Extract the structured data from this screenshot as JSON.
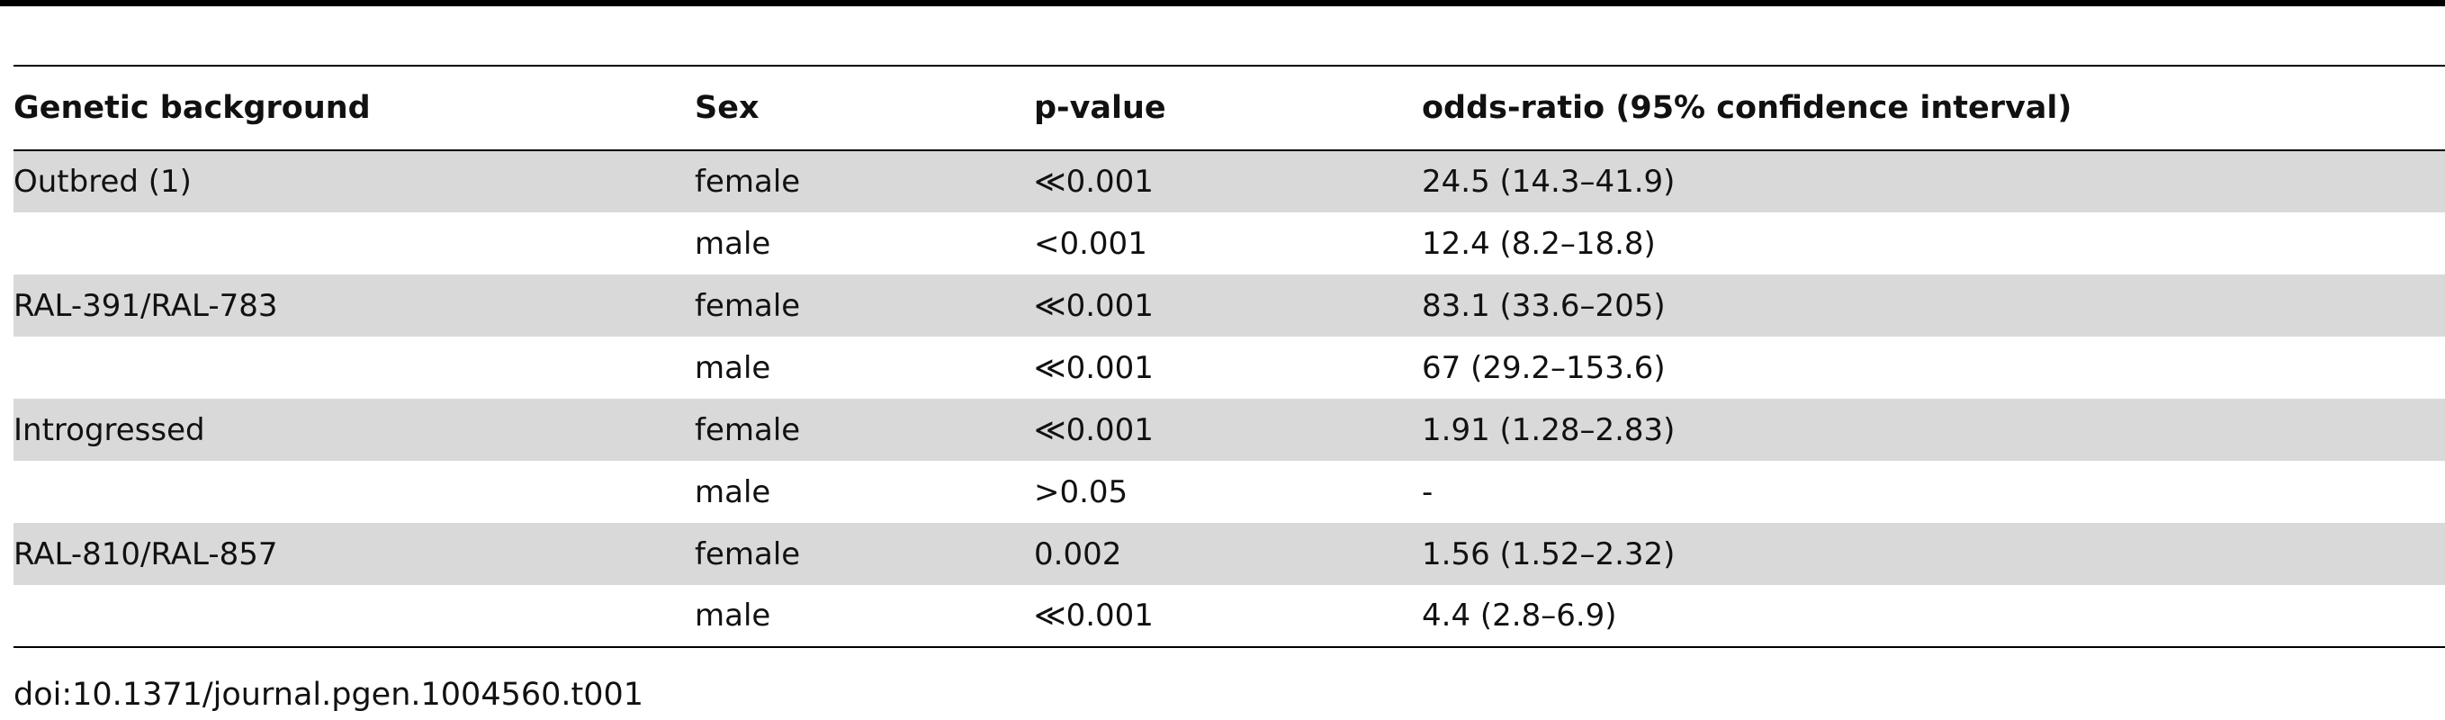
{
  "table": {
    "headers": [
      "Genetic background",
      "Sex",
      "p-value",
      "odds-ratio (95% confidence interval)"
    ],
    "rows": [
      {
        "background": "Outbred (1)",
        "sex": "female",
        "p_value": "≪0.001",
        "odds_ratio": "24.5 (14.3–41.9)"
      },
      {
        "background": "",
        "sex": "male",
        "p_value": "<0.001",
        "odds_ratio": "12.4 (8.2–18.8)"
      },
      {
        "background": "RAL-391/RAL-783",
        "sex": "female",
        "p_value": "≪0.001",
        "odds_ratio": "83.1 (33.6–205)"
      },
      {
        "background": "",
        "sex": "male",
        "p_value": "≪0.001",
        "odds_ratio": "67 (29.2–153.6)"
      },
      {
        "background": "Introgressed",
        "sex": "female",
        "p_value": "≪0.001",
        "odds_ratio": "1.91 (1.28–2.83)"
      },
      {
        "background": "",
        "sex": "male",
        "p_value": ">0.05",
        "odds_ratio": "-"
      },
      {
        "background": "RAL-810/RAL-857",
        "sex": "female",
        "p_value": "0.002",
        "odds_ratio": "1.56 (1.52–2.32)"
      },
      {
        "background": "",
        "sex": "male",
        "p_value": "≪0.001",
        "odds_ratio": "4.4 (2.8–6.9)"
      }
    ]
  },
  "footnote": "doi:10.1371/journal.pgen.1004560.t001"
}
